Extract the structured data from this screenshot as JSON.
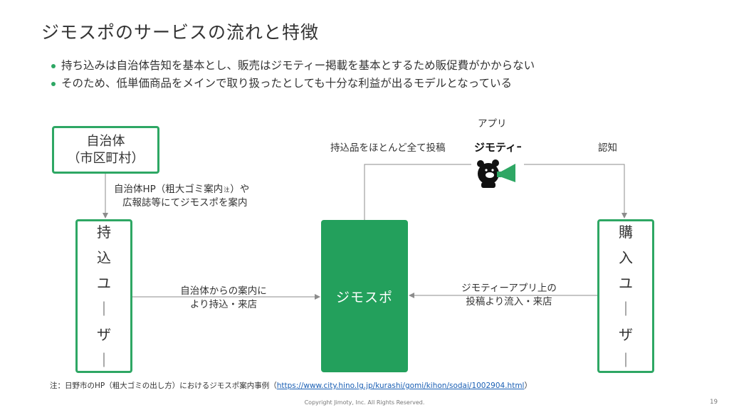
{
  "title": "ジモスポのサービスの流れと特徴",
  "bullets": [
    "持ち込みは自治体告知を基本とし、販売はジモティー掲載を基本とするため販促費がかからない",
    "そのため、低単価商品をメインで取り扱ったとしても十分な利益が出るモデルとなっている"
  ],
  "nodes": {
    "municipality_line1": "自治体",
    "municipality_line2": "（市区町村）",
    "bring_in_user": [
      "持",
      "込",
      "ユ",
      "｜",
      "ザ",
      "｜"
    ],
    "jimospo": "ジモスポ",
    "buyer_user": [
      "購",
      "入",
      "ユ",
      "｜",
      "ザ",
      "｜"
    ]
  },
  "labels": {
    "municipality_notice_line1": "自治体HP（粗大ゴミ案内",
    "note_mark": "注",
    "municipality_notice_line1_end": "）や",
    "municipality_notice_line2": "広報誌等にてジモスポを案内",
    "via_municipality_line1": "自治体からの案内に",
    "via_municipality_line2": "より持込・来店",
    "via_app_line1": "ジモティーアプリ上の",
    "via_app_line2": "投稿より流入・来店",
    "post_all": "持込品をほとんど全て投稿",
    "app": "アプリ",
    "awareness": "認知"
  },
  "logo": {
    "text": "ジモティー",
    "accent": "#2ea764"
  },
  "footnote": {
    "prefix": "注：日野市のHP（粗大ゴミの出し方）におけるジモスポ案内事例（",
    "link": "https://www.city.hino.lg.jp/kurashi/gomi/kihon/sodai/1002904.html",
    "suffix": "）"
  },
  "copyright": "Copyright Jimoty, Inc. All Rights Reserved.",
  "page_number": "19",
  "colors": {
    "green": "#2ea764",
    "center_fill": "#23a05c",
    "arrow": "#8c8c8c"
  }
}
